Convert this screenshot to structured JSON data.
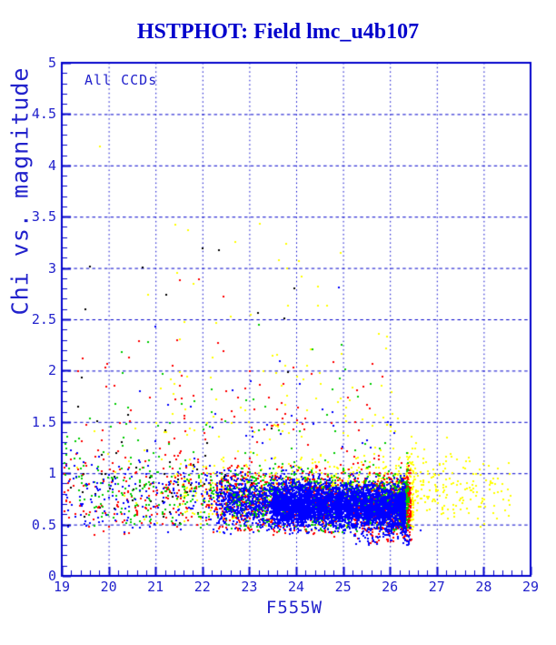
{
  "window": {
    "background": "#FFFFFF"
  },
  "chart_data": {
    "type": "scatter",
    "title": "HSTPHOT: Field lmc_u4b107",
    "annotation": "All CCDs",
    "xlabel": "F555W",
    "ylabel": "Chi vs. magnitude",
    "xlim": [
      19,
      29
    ],
    "ylim": [
      0,
      5
    ],
    "x_ticks": [
      "19",
      "20",
      "21",
      "22",
      "23",
      "24",
      "25",
      "26",
      "27",
      "28",
      "29"
    ],
    "y_ticks": [
      "0",
      "0.5",
      "1",
      "1.5",
      "2",
      "2.5",
      "3",
      "3.5",
      "4",
      "4.5",
      "5"
    ],
    "x_minor_step": 0.2,
    "y_minor_step": 0.1,
    "grid": {
      "vertical": "dotted",
      "horizontal": "dashed",
      "on": true
    },
    "colors": {
      "frame": "#0000CC",
      "grid": "#0000CC",
      "title": "#0000CC",
      "axis_text": "#2222CC",
      "background": "#FFFFFF"
    },
    "point_size": 2,
    "seed": 1337,
    "series": [
      {
        "name": "ccd-yellow",
        "color": "#FFFF00",
        "clusters": [
          {
            "n": 680,
            "x": [
              21.4,
              26.5
            ],
            "x_bias": "faint",
            "x_pow": 1.6,
            "dist": "gauss",
            "mean": [
              0.84,
              0.78
            ],
            "sigma": [
              0.17,
              0.2
            ],
            "clip": [
              0.42,
              1.5
            ]
          },
          {
            "n": 200,
            "x": [
              26.35,
              28.65
            ],
            "x_bias": "bright",
            "x_pow": 1.4,
            "dist": "gauss",
            "mean": [
              0.86,
              0.82
            ],
            "sigma": [
              0.18,
              0.16
            ],
            "clip": [
              0.45,
              1.4
            ]
          },
          {
            "n": 80,
            "x": [
              21.0,
              26.3
            ],
            "x_bias": "none",
            "x_pow": 1,
            "dist": "expdecay",
            "base": 1.35,
            "scale": 0.5,
            "max": 3.5
          },
          {
            "n": 16,
            "x": [
              19.2,
              21.4
            ],
            "x_bias": "none",
            "x_pow": 1,
            "dist": "gauss",
            "mean": [
              0.95,
              0.9
            ],
            "sigma": [
              0.28,
              0.25
            ],
            "clip": [
              0.5,
              1.6
            ]
          }
        ],
        "extra_points": [
          [
            19.82,
            4.18
          ],
          [
            21.43,
            3.42
          ],
          [
            21.7,
            3.37
          ],
          [
            22.71,
            3.25
          ],
          [
            23.79,
            3.24
          ],
          [
            23.64,
            3.08
          ],
          [
            24.05,
            3.07
          ],
          [
            23.81,
            3.0
          ],
          [
            24.12,
            2.92
          ],
          [
            20.84,
            2.74
          ],
          [
            21.47,
            2.95
          ],
          [
            21.81,
            2.85
          ],
          [
            24.47,
            2.82
          ],
          [
            23.83,
            2.63
          ],
          [
            24.47,
            2.63
          ],
          [
            27.68,
            1.15
          ],
          [
            28.51,
            0.84
          ],
          [
            27.87,
            0.56
          ]
        ]
      },
      {
        "name": "ccd-black",
        "color": "#000000",
        "clusters": [
          {
            "n": 55,
            "x": [
              19.05,
              23.6
            ],
            "x_bias": "none",
            "x_pow": 1,
            "dist": "gauss",
            "mean": [
              0.85,
              0.8
            ],
            "sigma": [
              0.3,
              0.25
            ],
            "clip": [
              0.45,
              1.75
            ]
          },
          {
            "n": 8,
            "x": [
              19.2,
              24.2
            ],
            "x_bias": "none",
            "x_pow": 1,
            "dist": "uniform",
            "y": [
              1.8,
              3.3
            ]
          }
        ],
        "extra_points": [
          [
            21.23,
            2.74
          ],
          [
            23.19,
            2.56
          ],
          [
            23.75,
            2.51
          ],
          [
            19.35,
            1.65
          ]
        ]
      },
      {
        "name": "ccd-red",
        "color": "#FF0000",
        "clusters": [
          {
            "n": 560,
            "x": [
              19.05,
              26.42
            ],
            "x_bias": "faint",
            "x_pow": 1.35,
            "dist": "gauss",
            "mean": [
              0.84,
              0.72
            ],
            "sigma": [
              0.24,
              0.2
            ],
            "clip": [
              0.4,
              1.55
            ]
          },
          {
            "n": 950,
            "x": [
              22.3,
              26.44
            ],
            "x_bias": "faint",
            "x_pow": 1.5,
            "dist": "gauss",
            "mean": [
              0.72,
              0.68
            ],
            "sigma": [
              0.14,
              0.13
            ],
            "clip": [
              0.38,
              1.15
            ]
          },
          {
            "n": 60,
            "x": [
              19.3,
              26.1
            ],
            "x_bias": "none",
            "x_pow": 1,
            "dist": "expdecay",
            "base": 1.4,
            "scale": 0.35,
            "max": 3.0
          },
          {
            "n": 45,
            "x": [
              25.2,
              26.46
            ],
            "x_bias": "faint",
            "x_pow": 1.8,
            "dist": "uniform",
            "y": [
              0.32,
              0.5
            ]
          }
        ],
        "extra_points": [
          [
            21.52,
            2.88
          ],
          [
            21.47,
            2.3
          ],
          [
            21.55,
            1.95
          ],
          [
            21.43,
            1.72
          ],
          [
            21.61,
            1.56
          ],
          [
            21.37,
            2.05
          ],
          [
            19.45,
            2.12
          ],
          [
            20.12,
            1.85
          ]
        ]
      },
      {
        "name": "ccd-green",
        "color": "#00CC00",
        "clusters": [
          {
            "n": 520,
            "x": [
              19.05,
              26.38
            ],
            "x_bias": "faint",
            "x_pow": 1.35,
            "dist": "gauss",
            "mean": [
              0.86,
              0.76
            ],
            "sigma": [
              0.22,
              0.18
            ],
            "clip": [
              0.45,
              1.5
            ]
          },
          {
            "n": 850,
            "x": [
              22.5,
              26.4
            ],
            "x_bias": "faint",
            "x_pow": 1.5,
            "dist": "gauss",
            "mean": [
              0.74,
              0.7
            ],
            "sigma": [
              0.13,
              0.12
            ],
            "clip": [
              0.42,
              1.08
            ]
          },
          {
            "n": 32,
            "x": [
              19.4,
              25.6
            ],
            "x_bias": "none",
            "x_pow": 1,
            "dist": "expdecay",
            "base": 1.4,
            "scale": 0.3,
            "max": 2.6
          }
        ],
        "extra_points": [
          [
            21.15,
            1.97
          ],
          [
            23.2,
            2.45
          ]
        ]
      },
      {
        "name": "ccd-blue",
        "color": "#0000FF",
        "clusters": [
          {
            "n": 170,
            "x": [
              19.05,
              22.4
            ],
            "x_bias": "none",
            "x_pow": 1,
            "dist": "gauss",
            "mean": [
              0.8,
              0.74
            ],
            "sigma": [
              0.2,
              0.16
            ],
            "clip": [
              0.42,
              1.4
            ]
          },
          {
            "n": 1000,
            "x": [
              22.3,
              24.3
            ],
            "x_bias": "faint",
            "x_pow": 1.3,
            "dist": "gauss",
            "mean": [
              0.72,
              0.7
            ],
            "sigma": [
              0.13,
              0.11
            ],
            "clip": [
              0.4,
              1.15
            ]
          },
          {
            "n": 3800,
            "x": [
              23.5,
              26.33
            ],
            "x_bias": "faint",
            "x_pow": 1.15,
            "dist": "gauss",
            "mean": [
              0.7,
              0.66
            ],
            "sigma": [
              0.1,
              0.105
            ],
            "clip": [
              0.4,
              1.05
            ]
          },
          {
            "n": 70,
            "x": [
              25.2,
              26.42
            ],
            "x_bias": "faint",
            "x_pow": 1.6,
            "dist": "uniform",
            "y": [
              0.3,
              0.5
            ]
          },
          {
            "n": 30,
            "x": [
              20.6,
              26.1
            ],
            "x_bias": "none",
            "x_pow": 1,
            "dist": "expdecay",
            "base": 1.25,
            "scale": 0.4,
            "max": 2.9
          }
        ],
        "extra_points": [
          [
            26.65,
            0.44
          ],
          [
            26.45,
            0.47
          ]
        ]
      }
    ]
  }
}
